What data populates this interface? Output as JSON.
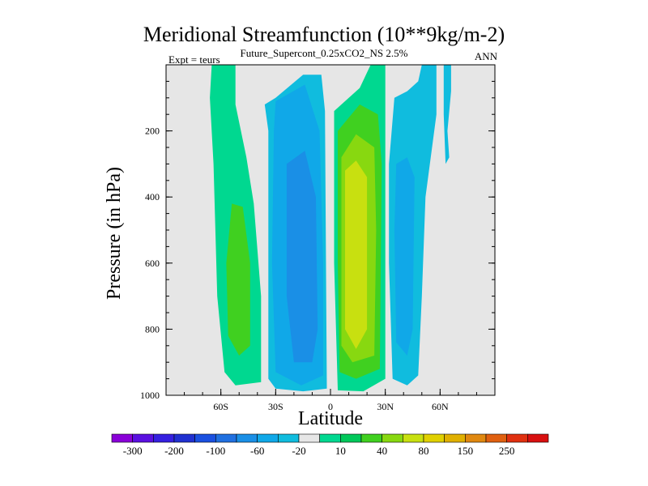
{
  "chart_data": {
    "type": "heatmap",
    "title": "Meridional Streamfunction (10**9kg/m-2)",
    "subtitle": "Future_Supercont_0.25xCO2_NS 2.5%",
    "left_note": "Expt = teurs",
    "right_note": "ANN",
    "xlabel": "Latitude",
    "ylabel": "Pressure (in hPa)",
    "x_ticks": [
      "60S",
      "30S",
      "0",
      "30N",
      "60N"
    ],
    "x_tick_values": [
      -60,
      -30,
      0,
      30,
      60
    ],
    "xlim": [
      -90,
      90
    ],
    "y_ticks": [
      "200",
      "400",
      "600",
      "800",
      "1000"
    ],
    "y_tick_values": [
      200,
      400,
      600,
      800,
      1000
    ],
    "ylim": [
      1000,
      0
    ],
    "colorbar": {
      "labels": [
        "-300",
        "-200",
        "-100",
        "-60",
        "-20",
        "10",
        "40",
        "80",
        "150",
        "250"
      ],
      "colors": [
        "#8a00d8",
        "#5a10e0",
        "#3520e0",
        "#2030d0",
        "#1a50e0",
        "#2070e0",
        "#1a8fe6",
        "#10a8e8",
        "#10bcde",
        "#e6e6e6",
        "#00d890",
        "#00c85a",
        "#40d020",
        "#88d810",
        "#c8e010",
        "#e0d000",
        "#e0b000",
        "#e08810",
        "#e06010",
        "#e03010",
        "#d81010"
      ]
    },
    "colors": {
      "background_panel": "#e6e6e6",
      "pos_10": "#00d890",
      "pos_40": "#40d020",
      "pos_80": "#88d810",
      "pos_120": "#c8e010",
      "pos_150": "#e0c000",
      "neg_10": "#10bcde",
      "neg_40": "#10a8e8",
      "neg_80": "#1a8fe6"
    }
  }
}
